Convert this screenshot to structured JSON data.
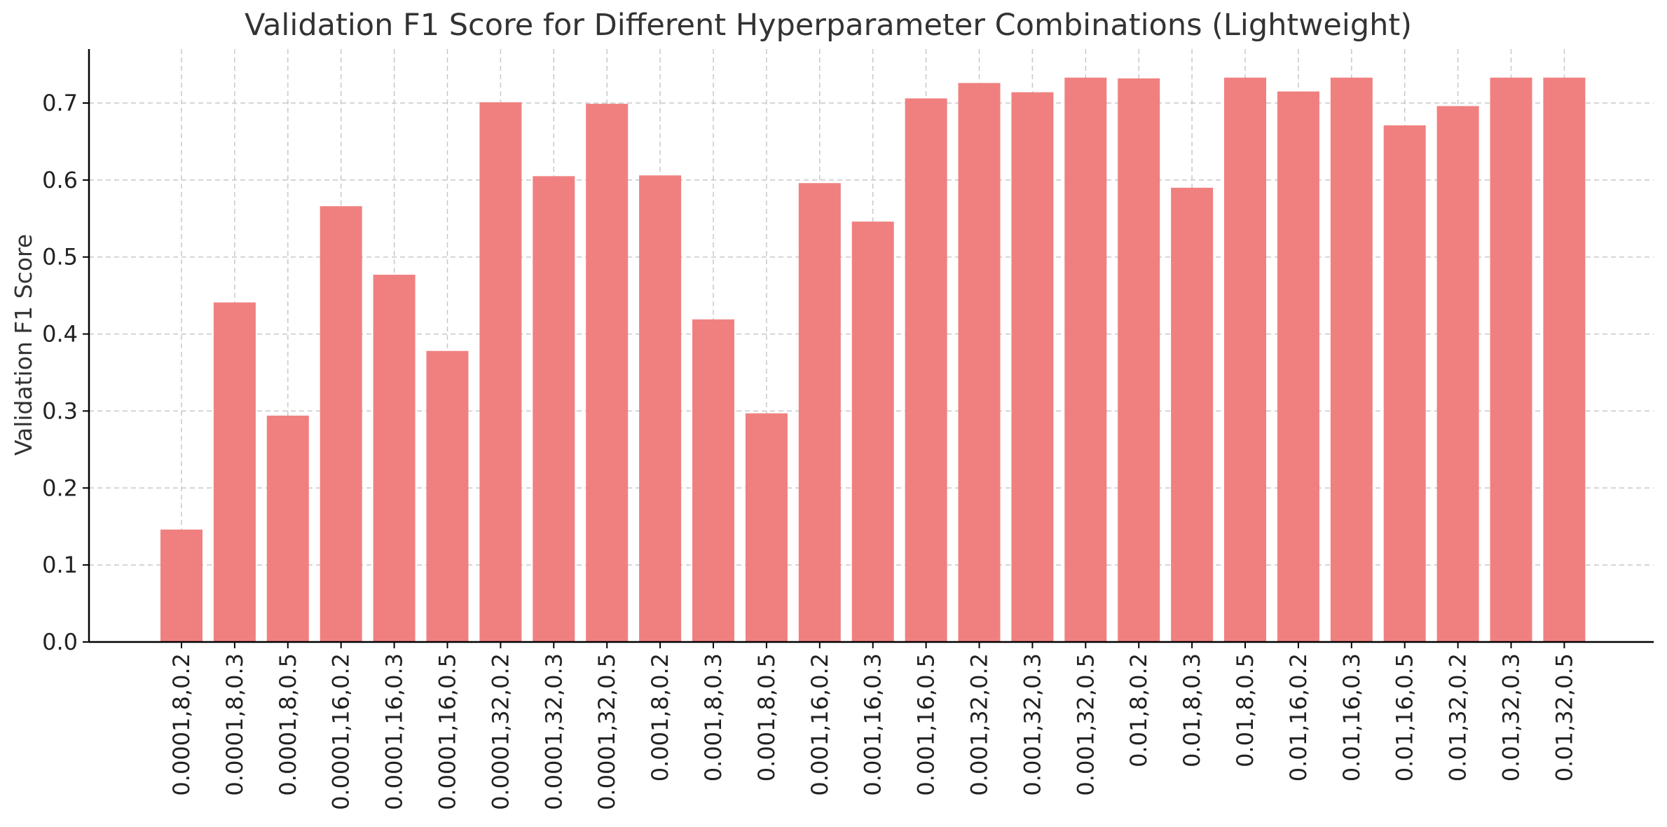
{
  "chart_data": {
    "type": "bar",
    "title": "Validation F1 Score for Different Hyperparameter Combinations (Lightweight)",
    "xlabel": "",
    "ylabel": "Validation F1 Score",
    "ylim": [
      0,
      0.73
    ],
    "yticks": [
      "0.0",
      "0.1",
      "0.2",
      "0.3",
      "0.4",
      "0.5",
      "0.6",
      "0.7"
    ],
    "grid": true,
    "bar_color": "#f08080",
    "categories": [
      "0.0001,8,0.2",
      "0.0001,8,0.3",
      "0.0001,8,0.5",
      "0.0001,16,0.2",
      "0.0001,16,0.3",
      "0.0001,16,0.5",
      "0.0001,32,0.2",
      "0.0001,32,0.3",
      "0.0001,32,0.5",
      "0.001,8,0.2",
      "0.001,8,0.3",
      "0.001,8,0.5",
      "0.001,16,0.2",
      "0.001,16,0.3",
      "0.001,16,0.5",
      "0.001,32,0.2",
      "0.001,32,0.3",
      "0.001,32,0.5",
      "0.01,8,0.2",
      "0.01,8,0.3",
      "0.01,8,0.5",
      "0.01,16,0.2",
      "0.01,16,0.3",
      "0.01,16,0.5",
      "0.01,32,0.2",
      "0.01,32,0.3",
      "0.01,32,0.5"
    ],
    "values": [
      0.146,
      0.441,
      0.294,
      0.566,
      0.477,
      0.378,
      0.701,
      0.605,
      0.699,
      0.606,
      0.419,
      0.297,
      0.596,
      0.546,
      0.706,
      0.726,
      0.714,
      0.733,
      0.732,
      0.59,
      0.733,
      0.715,
      0.733,
      0.671,
      0.696,
      0.733,
      0.733
    ]
  }
}
